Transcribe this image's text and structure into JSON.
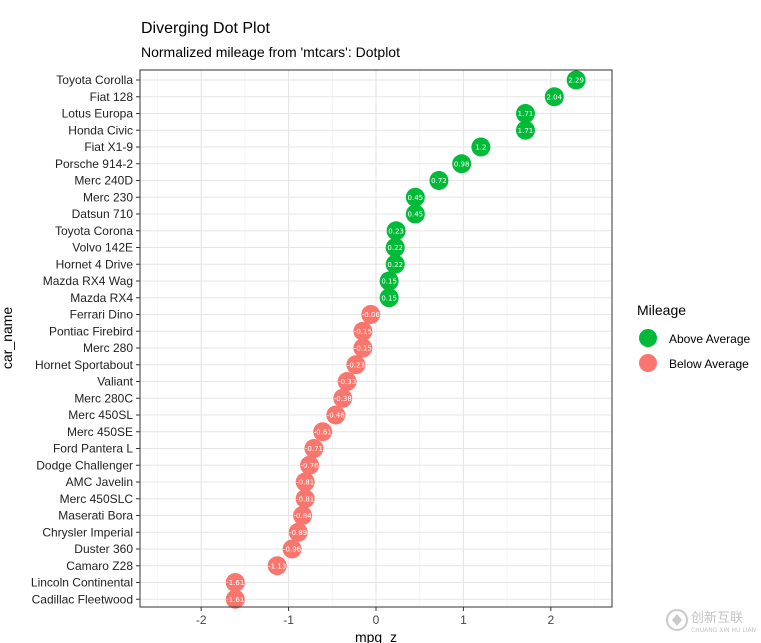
{
  "chart_data": {
    "type": "scatter",
    "title": "Diverging Dot Plot",
    "subtitle": "Normalized mileage from 'mtcars': Dotplot",
    "xlabel": "mpg_z",
    "ylabel": "car_name",
    "xlim": [
      -2.7,
      2.7
    ],
    "xticks": [
      "-2",
      "-1",
      "0",
      "1",
      "2"
    ],
    "xtick_values": [
      -2,
      -1,
      0,
      1,
      2
    ],
    "grid": true,
    "legend": {
      "title": "Mileage",
      "placement": "right",
      "entries": [
        {
          "label": "Above Average",
          "color": "#00ba38"
        },
        {
          "label": "Below Average",
          "color": "#f8766d"
        }
      ]
    },
    "points": [
      {
        "car": "Toyota Corolla",
        "value": 2.29,
        "label": "2.29",
        "group": "Above Average"
      },
      {
        "car": "Fiat 128",
        "value": 2.04,
        "label": "2.04",
        "group": "Above Average"
      },
      {
        "car": "Lotus Europa",
        "value": 1.71,
        "label": "1.71",
        "group": "Above Average"
      },
      {
        "car": "Honda Civic",
        "value": 1.71,
        "label": "1.71",
        "group": "Above Average"
      },
      {
        "car": "Fiat X1-9",
        "value": 1.2,
        "label": "1.2",
        "group": "Above Average"
      },
      {
        "car": "Porsche 914-2",
        "value": 0.98,
        "label": "0.98",
        "group": "Above Average"
      },
      {
        "car": "Merc 240D",
        "value": 0.72,
        "label": "0.72",
        "group": "Above Average"
      },
      {
        "car": "Merc 230",
        "value": 0.45,
        "label": "0.45",
        "group": "Above Average"
      },
      {
        "car": "Datsun 710",
        "value": 0.45,
        "label": "0.45",
        "group": "Above Average"
      },
      {
        "car": "Toyota Corona",
        "value": 0.23,
        "label": "0.23",
        "group": "Above Average"
      },
      {
        "car": "Volvo 142E",
        "value": 0.22,
        "label": "0.22",
        "group": "Above Average"
      },
      {
        "car": "Hornet 4 Drive",
        "value": 0.22,
        "label": "0.22",
        "group": "Above Average"
      },
      {
        "car": "Mazda RX4 Wag",
        "value": 0.15,
        "label": "0.15",
        "group": "Above Average"
      },
      {
        "car": "Mazda RX4",
        "value": 0.15,
        "label": "0.15",
        "group": "Above Average"
      },
      {
        "car": "Ferrari Dino",
        "value": -0.06,
        "label": "-0.06",
        "group": "Below Average"
      },
      {
        "car": "Pontiac Firebird",
        "value": -0.15,
        "label": "-0.15",
        "group": "Below Average"
      },
      {
        "car": "Merc 280",
        "value": -0.15,
        "label": "-0.15",
        "group": "Below Average"
      },
      {
        "car": "Hornet Sportabout",
        "value": -0.23,
        "label": "-0.23",
        "group": "Below Average"
      },
      {
        "car": "Valiant",
        "value": -0.33,
        "label": "-0.33",
        "group": "Below Average"
      },
      {
        "car": "Merc 280C",
        "value": -0.38,
        "label": "-0.38",
        "group": "Below Average"
      },
      {
        "car": "Merc 450SL",
        "value": -0.46,
        "label": "-0.46",
        "group": "Below Average"
      },
      {
        "car": "Merc 450SE",
        "value": -0.61,
        "label": "-0.61",
        "group": "Below Average"
      },
      {
        "car": "Ford Pantera L",
        "value": -0.71,
        "label": "-0.71",
        "group": "Below Average"
      },
      {
        "car": "Dodge Challenger",
        "value": -0.76,
        "label": "-0.76",
        "group": "Below Average"
      },
      {
        "car": "AMC Javelin",
        "value": -0.81,
        "label": "-0.81",
        "group": "Below Average"
      },
      {
        "car": "Merc 450SLC",
        "value": -0.81,
        "label": "-0.81",
        "group": "Below Average"
      },
      {
        "car": "Maserati Bora",
        "value": -0.84,
        "label": "-0.84",
        "group": "Below Average"
      },
      {
        "car": "Chrysler Imperial",
        "value": -0.89,
        "label": "-0.89",
        "group": "Below Average"
      },
      {
        "car": "Duster 360",
        "value": -0.96,
        "label": "-0.96",
        "group": "Below Average"
      },
      {
        "car": "Camaro Z28",
        "value": -1.13,
        "label": "-1.13",
        "group": "Below Average"
      },
      {
        "car": "Lincoln Continental",
        "value": -1.61,
        "label": "-1.61",
        "group": "Below Average"
      },
      {
        "car": "Cadillac Fleetwood",
        "value": -1.61,
        "label": "-1.61",
        "group": "Below Average"
      }
    ]
  },
  "watermark": {
    "text": "创新互联",
    "subtext": "CHUANG XIN HU LIAN"
  }
}
